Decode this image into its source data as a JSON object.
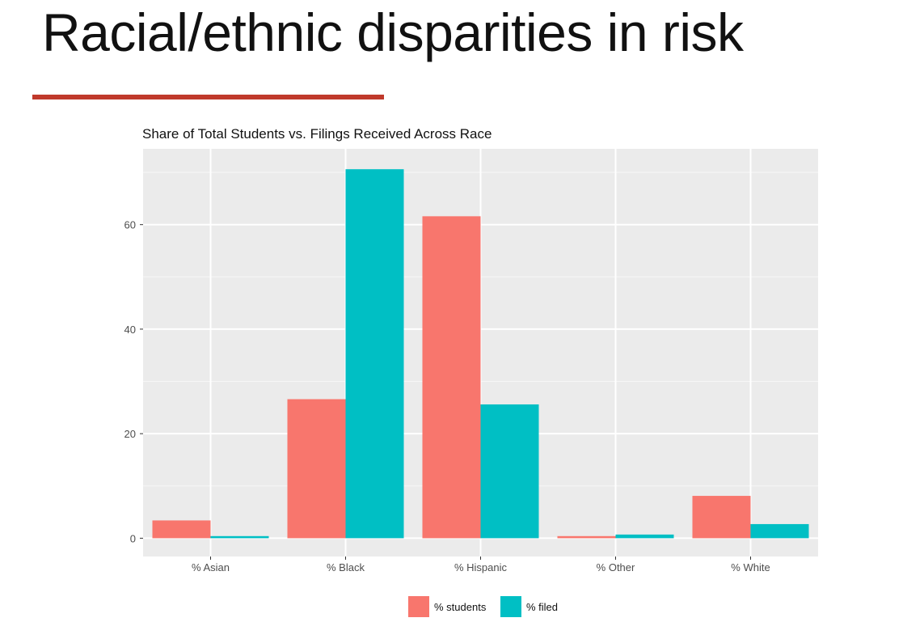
{
  "slide": {
    "title": "Racial/ethnic disparities in risk",
    "accent_color": "#c0392b"
  },
  "chart_data": {
    "type": "bar",
    "title": "Share of Total Students vs. Filings Received Across Race",
    "xlabel": "",
    "ylabel": "",
    "categories": [
      "% Asian",
      "% Black",
      "% Hispanic",
      "% Other",
      "% White"
    ],
    "series": [
      {
        "name": "% students",
        "color": "#F8766D",
        "values": [
          3.4,
          26.6,
          61.6,
          0.4,
          8.1
        ]
      },
      {
        "name": "% filed",
        "color": "#00BFC4",
        "values": [
          0.4,
          70.6,
          25.6,
          0.7,
          2.7
        ]
      }
    ],
    "ylim": [
      -3.5,
      74.5
    ],
    "yticks": [
      0,
      20,
      40,
      60
    ],
    "grid": true,
    "panel_background": "#EBEBEB",
    "legend_position": "bottom"
  }
}
